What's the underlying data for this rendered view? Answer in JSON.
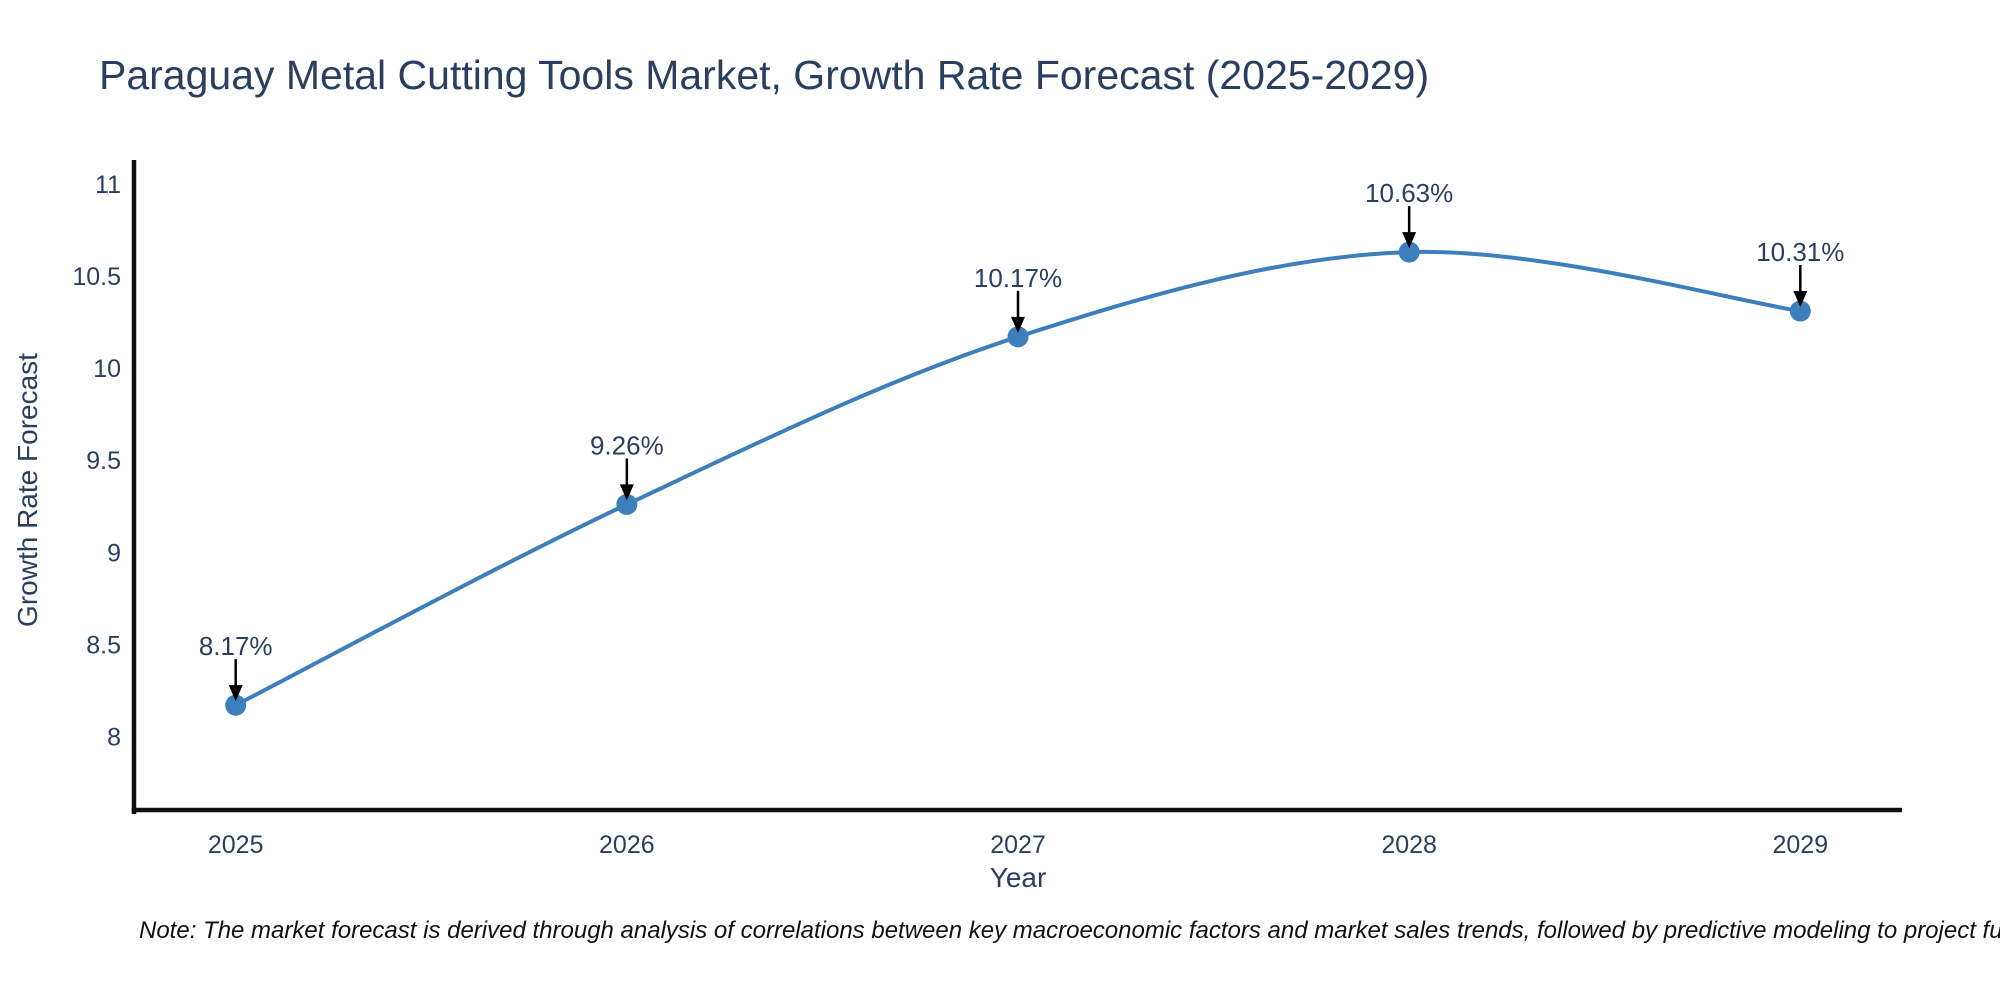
{
  "title": "Paraguay Metal Cutting Tools Market, Growth Rate Forecast (2025-2029)",
  "footnote": "Note: The market forecast is derived through analysis of correlations between key macroeconomic factors and market sales trends, followed by predictive modeling to project future sal",
  "colors": {
    "background": "#ffffff",
    "title_text": "#2a3f5f",
    "tick_text": "#2a3f5f",
    "axis_title_text": "#2a3f5f",
    "annotation_text": "#2a3f5f",
    "note_text": "#111111",
    "axis_line": "#111111",
    "series_line": "#3d7ebc",
    "marker_fill": "#3d7ebc",
    "arrow": "#000000"
  },
  "chart_data": {
    "type": "line",
    "title": "Paraguay Metal Cutting Tools Market, Growth Rate Forecast (2025-2029)",
    "xlabel": "Year",
    "ylabel": "Growth Rate Forecast",
    "categories": [
      2025,
      2026,
      2027,
      2028,
      2029
    ],
    "series": [
      {
        "name": "Growth Rate Forecast",
        "values": [
          8.17,
          9.26,
          10.17,
          10.63,
          10.31
        ]
      }
    ],
    "point_labels": [
      "8.17%",
      "9.26%",
      "10.17%",
      "10.63%",
      "10.31%"
    ],
    "x_tick_labels": [
      "2025",
      "2026",
      "2027",
      "2028",
      "2029"
    ],
    "y_tick_values": [
      8,
      8.5,
      9,
      9.5,
      10,
      10.5,
      11
    ],
    "y_tick_labels": [
      "8",
      "8.5",
      "9",
      "9.5",
      "10",
      "10.5",
      "11"
    ],
    "xlim": [
      2024.74,
      2029.26
    ],
    "ylim": [
      7.59,
      11.13
    ],
    "grid": false,
    "legend_position": "none",
    "line_shape": "spline",
    "markers": true,
    "annotations": "percentage value label with downward black arrow above each data point"
  }
}
